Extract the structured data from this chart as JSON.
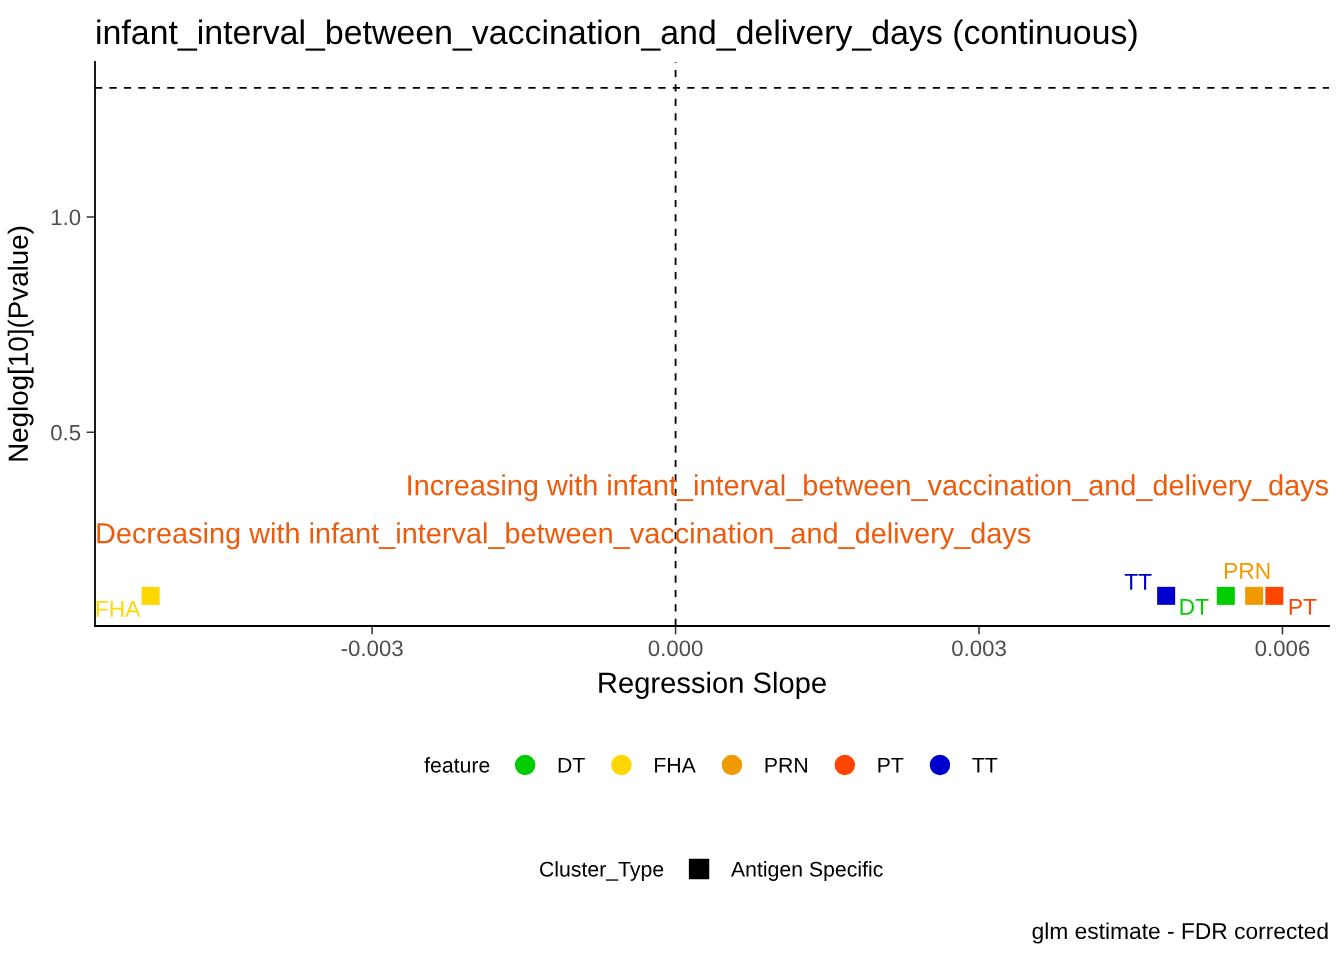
{
  "chart_data": {
    "type": "scatter",
    "title": "infant_interval_between_vaccination_and_delivery_days (continuous)",
    "xlabel": "Regression Slope",
    "ylabel": "Neglog[10](Pvalue)",
    "legend_title": "feature",
    "annotations": [
      "Decreasing with infant_interval_between_vaccination_and_delivery_days",
      "Increasing with infant_interval_between_vaccination_and_delivery_days",
      "Cluster_Type",
      "Antigen Specific",
      "glm estimate - FDR corrected"
    ],
    "series": [
      {
        "name": "DT",
        "color": "#00cd00",
        "x": [
          0.00544
        ],
        "values": [
          0.12
        ]
      },
      {
        "name": "FHA",
        "color": "#ffd700",
        "x": [
          -0.00519
        ],
        "values": [
          0.12
        ]
      },
      {
        "name": "PRN",
        "color": "#ee9a00",
        "x": [
          0.00572
        ],
        "values": [
          0.12
        ]
      },
      {
        "name": "PT",
        "color": "#ff4500",
        "x": [
          0.00592
        ],
        "values": [
          0.12
        ]
      },
      {
        "name": "TT",
        "color": "#0000cd",
        "x": [
          0.00485
        ],
        "values": [
          0.12
        ]
      }
    ],
    "xlim": [
      -0.00574,
      0.00646
    ],
    "ylim": [
      0.05,
      1.36
    ],
    "xticks": [
      {
        "value": -0.003,
        "label": "-0.003"
      },
      {
        "value": 0,
        "label": "0.000"
      },
      {
        "value": 0.003,
        "label": "0.003"
      },
      {
        "value": 0.006,
        "label": "0.006"
      }
    ],
    "yticks": [
      {
        "value": 0.5,
        "label": "0.5"
      },
      {
        "value": 1.0,
        "label": "1.0"
      }
    ],
    "ref_lines": [
      {
        "axis": "x",
        "value": 0,
        "line_style": "dashed"
      },
      {
        "axis": "y",
        "value": 1.3,
        "line_style": "dashed"
      }
    ],
    "marker": "square",
    "grid": false,
    "legend": "bottom"
  }
}
